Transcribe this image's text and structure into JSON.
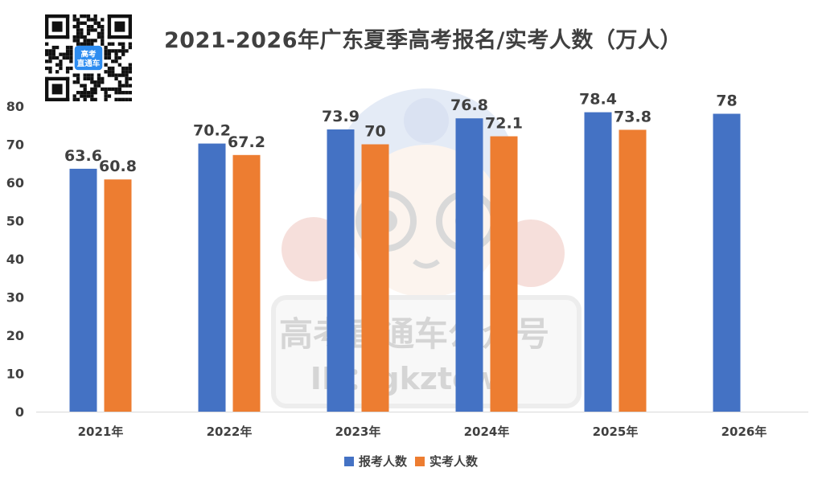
{
  "chart_data": {
    "type": "bar",
    "title": "2021-2026年广东夏季高考报名/实考人数（万人）",
    "categories": [
      "2021年",
      "2022年",
      "2023年",
      "2024年",
      "2025年",
      "2026年"
    ],
    "series": [
      {
        "name": "报考人数",
        "color": "#4472c4",
        "values": [
          63.6,
          70.2,
          73.9,
          76.8,
          78.4,
          78
        ]
      },
      {
        "name": "实考人数",
        "color": "#ed7d31",
        "values": [
          60.8,
          67.2,
          70,
          72.1,
          73.8,
          null
        ]
      }
    ],
    "data_labels": {
      "报考人数": [
        "63.6",
        "70.2",
        "73.9",
        "76.8",
        "78.4",
        "78"
      ],
      "实考人数": [
        "60.8",
        "67.2",
        "70",
        "72.1",
        "73.8",
        ""
      ]
    },
    "yticks": [
      "0",
      "10",
      "20",
      "30",
      "40",
      "50",
      "60",
      "70",
      "80"
    ],
    "ylim": [
      0,
      80
    ],
    "grid": false,
    "legend_position": "bottom"
  },
  "watermark": {
    "line1": "高考直通车公众号",
    "line2": "ID：gkztcwx"
  },
  "qr_badge": {
    "line1": "高考",
    "line2": "直通车"
  }
}
